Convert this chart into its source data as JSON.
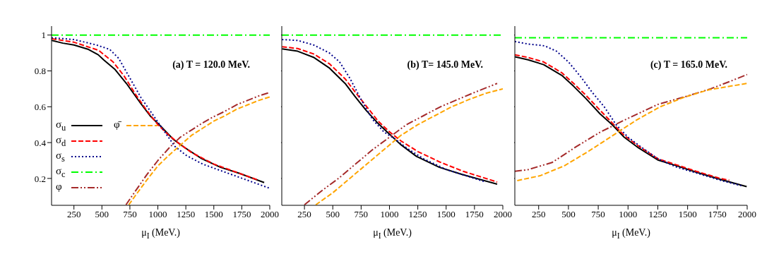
{
  "chart_data": [
    {
      "type": "line",
      "annotations": [
        "(a)  T = 120.0 MeV."
      ],
      "xlabel": "μ$_{I}$ (MeV.)",
      "xlim": [
        50,
        2000
      ],
      "xticks": [
        250,
        500,
        750,
        1000,
        1250,
        1500,
        1750,
        2000
      ],
      "ylim": [
        0.05,
        1.05
      ],
      "yticks": [
        0.2,
        0.4,
        0.6,
        0.8,
        1
      ],
      "legend": "left",
      "series": [
        {
          "name": "σ$_{u}$",
          "color": "#000000",
          "line_style": "solid",
          "x": [
            50,
            150,
            250,
            380,
            467,
            515,
            614,
            719,
            845,
            930,
            1035,
            1140,
            1245,
            1392,
            1560,
            1730,
            1950
          ],
          "values": [
            0.97,
            0.955,
            0.945,
            0.92,
            0.89,
            0.862,
            0.81,
            0.73,
            0.62,
            0.55,
            0.485,
            0.417,
            0.37,
            0.31,
            0.262,
            0.228,
            0.177
          ]
        },
        {
          "name": "σ$_{d}$",
          "color": "#ff0000",
          "line_style": "dashed",
          "x": [
            50,
            250,
            470,
            600,
            700,
            800,
            900,
            1000,
            1100,
            1200,
            1300,
            1500,
            1700,
            1900
          ],
          "values": [
            0.98,
            0.96,
            0.915,
            0.85,
            0.77,
            0.67,
            0.58,
            0.5,
            0.44,
            0.39,
            0.345,
            0.28,
            0.235,
            0.19
          ]
        },
        {
          "name": "σ$_{s}$",
          "color": "#00008b",
          "line_style": "dotted",
          "x": [
            50,
            250,
            450,
            570,
            650,
            750,
            850,
            950,
            1050,
            1150,
            1250,
            1400,
            1600,
            1800,
            2000
          ],
          "values": [
            0.985,
            0.975,
            0.945,
            0.92,
            0.87,
            0.76,
            0.65,
            0.56,
            0.47,
            0.38,
            0.33,
            0.28,
            0.235,
            0.19,
            0.145
          ]
        },
        {
          "name": "σ$_{c}$",
          "color": "#00ff00",
          "line_style": "dashdot",
          "x": [
            50,
            2000
          ],
          "values": [
            1,
            1
          ]
        },
        {
          "name": "φ",
          "color": "#a52a2a",
          "line_style": "dashdotdot",
          "x": [
            715,
            800,
            900,
            1000,
            1100,
            1200,
            1300,
            1400,
            1500,
            1600,
            1700,
            1800,
            1900,
            2000
          ],
          "values": [
            0.053,
            0.13,
            0.22,
            0.3,
            0.37,
            0.43,
            0.47,
            0.51,
            0.545,
            0.575,
            0.61,
            0.635,
            0.66,
            0.68
          ]
        },
        {
          "name": "φ̄",
          "color": "#ffa500",
          "line_style": "dashed",
          "x": [
            740,
            800,
            900,
            1000,
            1100,
            1200,
            1300,
            1400,
            1500,
            1600,
            1700,
            1800,
            1900,
            2000
          ],
          "values": [
            0.053,
            0.105,
            0.19,
            0.27,
            0.33,
            0.385,
            0.44,
            0.48,
            0.52,
            0.55,
            0.585,
            0.61,
            0.635,
            0.655
          ]
        }
      ]
    },
    {
      "type": "line",
      "annotations": [
        "(b)   T= 145.0 MeV."
      ],
      "xlabel": "μ$_{I}$ (MeV.)",
      "xlim": [
        50,
        2000
      ],
      "xticks": [
        250,
        500,
        750,
        1000,
        1250,
        1500,
        1750,
        2000
      ],
      "ylim": [
        0.05,
        1.05
      ],
      "yticks": [
        0.2,
        0.4,
        0.6,
        0.8,
        1
      ],
      "tick_labels": "x",
      "series": [
        {
          "color": "#000000",
          "line_style": "solid",
          "x": [
            52,
            190,
            330,
            472,
            613,
            693,
            794,
            895,
            996,
            1097,
            1238,
            1440,
            1641,
            1950
          ],
          "values": [
            0.923,
            0.91,
            0.876,
            0.815,
            0.727,
            0.66,
            0.58,
            0.51,
            0.45,
            0.39,
            0.323,
            0.262,
            0.222,
            0.168
          ]
        },
        {
          "color": "#ff0000",
          "line_style": "dashed",
          "x": [
            52,
            190,
            330,
            470,
            610,
            700,
            800,
            900,
            1000,
            1100,
            1250,
            1450,
            1650,
            1950
          ],
          "values": [
            0.935,
            0.925,
            0.895,
            0.84,
            0.755,
            0.68,
            0.6,
            0.52,
            0.46,
            0.41,
            0.35,
            0.29,
            0.24,
            0.18
          ]
        },
        {
          "color": "#00008b",
          "line_style": "dotted",
          "x": [
            52,
            190,
            330,
            470,
            560,
            650,
            750,
            850,
            950,
            1050,
            1150,
            1300,
            1500,
            1700,
            1850
          ],
          "values": [
            0.975,
            0.97,
            0.945,
            0.9,
            0.85,
            0.76,
            0.64,
            0.53,
            0.46,
            0.42,
            0.37,
            0.31,
            0.25,
            0.21,
            0.18
          ]
        },
        {
          "color": "#00ff00",
          "line_style": "dashdot",
          "x": [
            50,
            2000
          ],
          "values": [
            1,
            1
          ]
        },
        {
          "color": "#a52a2a",
          "line_style": "dashdotdot",
          "x": [
            250,
            400,
            550,
            700,
            850,
            1000,
            1150,
            1300,
            1450,
            1600,
            1750,
            1950
          ],
          "values": [
            0.053,
            0.13,
            0.2,
            0.28,
            0.36,
            0.43,
            0.5,
            0.55,
            0.6,
            0.64,
            0.68,
            0.73
          ]
        },
        {
          "color": "#ffa500",
          "line_style": "dashed",
          "x": [
            350,
            500,
            650,
            800,
            950,
            1100,
            1250,
            1400,
            1550,
            1700,
            1850,
            2000
          ],
          "values": [
            0.053,
            0.12,
            0.2,
            0.28,
            0.36,
            0.44,
            0.5,
            0.55,
            0.6,
            0.64,
            0.675,
            0.7
          ]
        }
      ]
    },
    {
      "type": "line",
      "annotations": [
        "(c)   T = 165.0 MeV."
      ],
      "xlabel": "μ$_{I}$ (MeV.)",
      "xlim": [
        50,
        2000
      ],
      "xticks": [
        250,
        500,
        750,
        1000,
        1250,
        1500,
        1750,
        2000
      ],
      "ylim": [
        0.05,
        1.05
      ],
      "yticks": [
        0.2,
        0.4,
        0.6,
        0.8,
        1
      ],
      "tick_labels": "x",
      "series": [
        {
          "color": "#000000",
          "line_style": "solid",
          "x": [
            50,
            161,
            292,
            444,
            544,
            645,
            766,
            867,
            968,
            1089,
            1250,
            1411,
            1572,
            1774,
            1996
          ],
          "values": [
            0.879,
            0.862,
            0.835,
            0.775,
            0.714,
            0.647,
            0.56,
            0.5,
            0.43,
            0.37,
            0.303,
            0.27,
            0.235,
            0.195,
            0.154
          ]
        },
        {
          "color": "#ff0000",
          "line_style": "dashed",
          "x": [
            50,
            161,
            292,
            444,
            544,
            645,
            766,
            867,
            968,
            1089,
            1250,
            1411,
            1572,
            1774,
            1850
          ],
          "values": [
            0.89,
            0.875,
            0.85,
            0.79,
            0.73,
            0.665,
            0.58,
            0.51,
            0.44,
            0.38,
            0.31,
            0.275,
            0.24,
            0.2,
            0.19
          ]
        },
        {
          "color": "#00008b",
          "line_style": "dotted",
          "x": [
            50,
            161,
            300,
            400,
            500,
            600,
            700,
            800,
            900,
            1000,
            1100,
            1250,
            1400,
            1600,
            1800,
            1950
          ],
          "values": [
            0.964,
            0.95,
            0.94,
            0.91,
            0.85,
            0.77,
            0.68,
            0.6,
            0.5,
            0.43,
            0.38,
            0.31,
            0.265,
            0.225,
            0.185,
            0.16
          ]
        },
        {
          "color": "#00ff00",
          "line_style": "dashdot",
          "x": [
            50,
            2000
          ],
          "values": [
            0.985,
            0.985
          ]
        },
        {
          "color": "#a52a2a",
          "line_style": "dashdotdot",
          "x": [
            50,
            161,
            363,
            565,
            766,
            968,
            1250,
            1500,
            1693,
            1850,
            2000
          ],
          "values": [
            0.24,
            0.249,
            0.289,
            0.377,
            0.458,
            0.525,
            0.613,
            0.66,
            0.7,
            0.74,
            0.78
          ]
        },
        {
          "color": "#ffa500",
          "line_style": "dashed",
          "x": [
            70,
            262,
            464,
            665,
            867,
            1069,
            1270,
            1472,
            1673,
            1996
          ],
          "values": [
            0.188,
            0.215,
            0.27,
            0.35,
            0.437,
            0.525,
            0.6,
            0.653,
            0.694,
            0.73
          ]
        }
      ]
    }
  ]
}
